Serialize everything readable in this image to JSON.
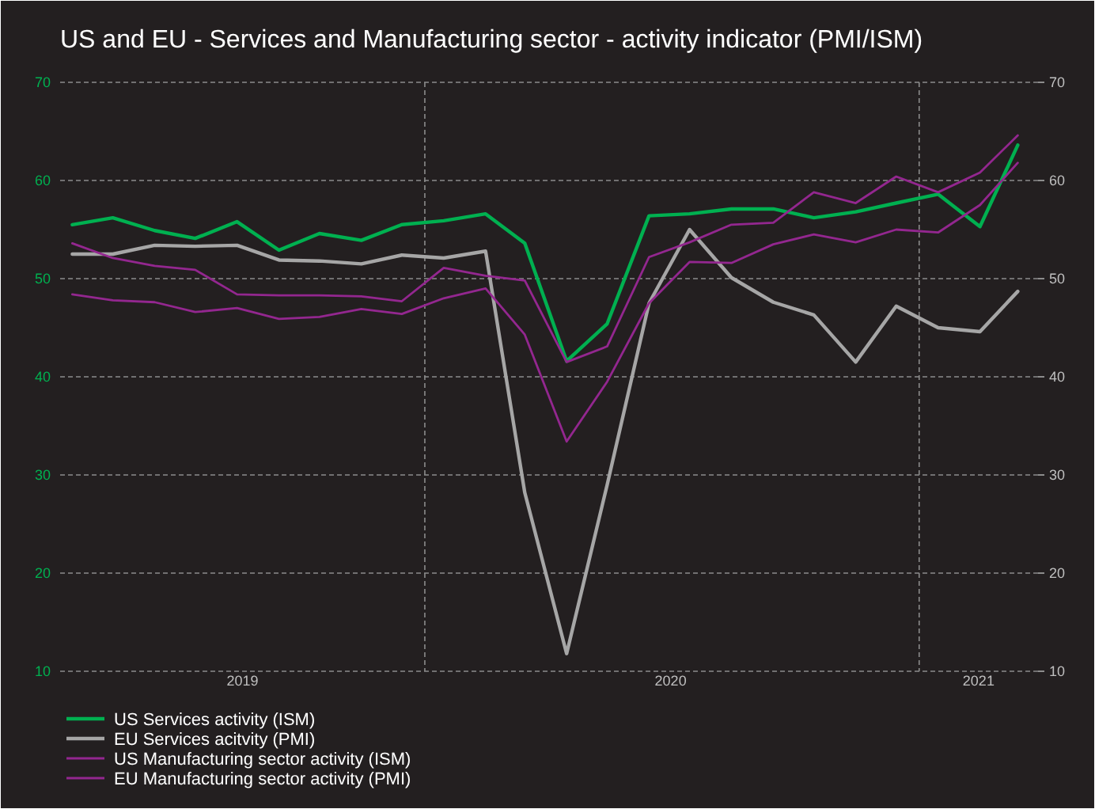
{
  "chart_data": {
    "type": "line",
    "title": "US and EU - Services and Manufacturing sector - activity indicator (PMI/ISM)",
    "x": [
      "2019-04-15",
      "2019-05-15",
      "2019-06-15",
      "2019-07-15",
      "2019-08-15",
      "2019-09-15",
      "2019-10-15",
      "2019-11-15",
      "2019-12-15",
      "2020-01-15",
      "2020-02-15",
      "2020-03-15",
      "2020-04-15",
      "2020-05-15",
      "2020-06-15",
      "2020-07-15",
      "2020-08-15",
      "2020-09-15",
      "2020-10-15",
      "2020-11-15",
      "2020-12-15",
      "2021-01-15",
      "2021-02-15",
      "2021-03-15"
    ],
    "xlim": [
      "2019-04-06",
      "2021-03-30"
    ],
    "xticks": [
      {
        "value": "2019-08-19",
        "label": "2019"
      },
      {
        "value": "2020-07-01",
        "label": "2020"
      },
      {
        "value": "2021-02-14",
        "label": "2021"
      }
    ],
    "ylim": [
      10,
      70
    ],
    "yticks": [
      10,
      20,
      30,
      40,
      50,
      60,
      70
    ],
    "y2lim": [
      10,
      70
    ],
    "y2ticks": [
      10,
      20,
      30,
      40,
      50,
      60,
      70
    ],
    "grid": "y",
    "ref_lines": [
      {
        "axis": "x",
        "value": "2020-01-01"
      },
      {
        "axis": "x",
        "value": "2021-01-01"
      }
    ],
    "legend": "bottom left",
    "series": [
      {
        "name": "US Services activity (ISM)",
        "color": "#00b050",
        "values": [
          55.5,
          56.2,
          54.9,
          54.1,
          55.8,
          52.9,
          54.6,
          53.9,
          55.5,
          55.9,
          56.6,
          53.6,
          41.6,
          45.4,
          56.4,
          56.6,
          57.1,
          57.1,
          56.2,
          56.8,
          57.7,
          58.6,
          55.3,
          63.6
        ]
      },
      {
        "name": "EU Services acitvity (PMI)",
        "color": "#a6a6a6",
        "values": [
          52.5,
          52.5,
          53.4,
          53.3,
          53.4,
          51.9,
          51.8,
          51.5,
          52.4,
          52.1,
          52.8,
          28.2,
          11.8,
          29.0,
          47.5,
          55.0,
          50.1,
          47.6,
          46.3,
          41.5,
          47.2,
          45.0,
          44.6,
          48.7
        ]
      },
      {
        "name": "US Manufacturing sector activity (ISM)",
        "color": "#93278f",
        "values": [
          53.6,
          52.1,
          51.3,
          50.9,
          48.4,
          48.3,
          48.3,
          48.2,
          47.7,
          51.1,
          50.3,
          49.8,
          41.5,
          43.1,
          52.2,
          53.7,
          55.5,
          55.7,
          58.8,
          57.7,
          60.4,
          58.8,
          60.8,
          64.6
        ]
      },
      {
        "name": "EU Manufacturing sector activity (PMI)",
        "color": "#93278f",
        "values": [
          48.4,
          47.8,
          47.6,
          46.6,
          47.0,
          45.9,
          46.1,
          46.9,
          46.4,
          48.0,
          49.0,
          44.3,
          33.4,
          39.5,
          47.5,
          51.7,
          51.6,
          53.5,
          54.5,
          53.7,
          55.0,
          54.7,
          57.5,
          61.8
        ]
      }
    ]
  }
}
